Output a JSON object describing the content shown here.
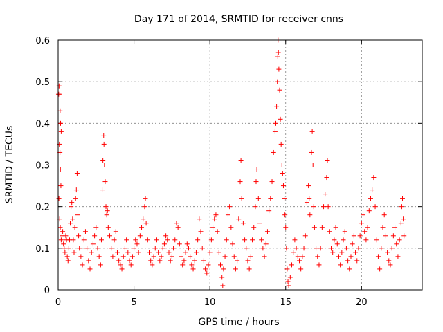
{
  "chart_data": {
    "type": "scatter",
    "title": "Day 171 of 2014, SRMTID for receiver cnns",
    "xlabel": "GPS time / hours",
    "ylabel": "SRMTID / TECUs",
    "xlim": [
      0,
      24
    ],
    "ylim": [
      0,
      0.6
    ],
    "xticks": [
      0,
      5,
      10,
      15,
      20
    ],
    "yticks": [
      0,
      0.1,
      0.2,
      0.3,
      0.4,
      0.5,
      0.6
    ],
    "ytick_labels": [
      "0",
      "0.1",
      "0.2",
      "0.3",
      "0.4",
      "0.5",
      "0.6"
    ],
    "grid": true,
    "marker": "+",
    "color": "#ff0000",
    "series": [
      {
        "name": "cnns",
        "points": [
          [
            0.02,
            0.47
          ],
          [
            0.06,
            0.49
          ],
          [
            0.1,
            0.47
          ],
          [
            0.13,
            0.43
          ],
          [
            0.16,
            0.4
          ],
          [
            0.2,
            0.38
          ],
          [
            0.08,
            0.35
          ],
          [
            0.12,
            0.33
          ],
          [
            0.15,
            0.29
          ],
          [
            0.18,
            0.25
          ],
          [
            0.05,
            0.22
          ],
          [
            0.1,
            0.17
          ],
          [
            0.14,
            0.15
          ],
          [
            0.2,
            0.12
          ],
          [
            0.25,
            0.13
          ],
          [
            0.3,
            0.14
          ],
          [
            0.35,
            0.11
          ],
          [
            0.4,
            0.1
          ],
          [
            0.45,
            0.09
          ],
          [
            0.5,
            0.13
          ],
          [
            0.55,
            0.12
          ],
          [
            0.6,
            0.08
          ],
          [
            0.65,
            0.07
          ],
          [
            0.7,
            0.1
          ],
          [
            0.75,
            0.12
          ],
          [
            0.8,
            0.16
          ],
          [
            0.85,
            0.2
          ],
          [
            0.9,
            0.21
          ],
          [
            0.95,
            0.17
          ],
          [
            1.0,
            0.12
          ],
          [
            1.05,
            0.09
          ],
          [
            1.1,
            0.15
          ],
          [
            1.15,
            0.22
          ],
          [
            1.2,
            0.24
          ],
          [
            1.25,
            0.28
          ],
          [
            1.3,
            0.18
          ],
          [
            1.35,
            0.13
          ],
          [
            1.4,
            0.1
          ],
          [
            1.5,
            0.08
          ],
          [
            1.6,
            0.06
          ],
          [
            1.7,
            0.12
          ],
          [
            1.8,
            0.14
          ],
          [
            1.9,
            0.1
          ],
          [
            2.0,
            0.07
          ],
          [
            2.1,
            0.05
          ],
          [
            2.2,
            0.09
          ],
          [
            2.3,
            0.11
          ],
          [
            2.4,
            0.13
          ],
          [
            2.5,
            0.15
          ],
          [
            2.6,
            0.1
          ],
          [
            2.7,
            0.08
          ],
          [
            2.8,
            0.06
          ],
          [
            2.85,
            0.12
          ],
          [
            2.9,
            0.24
          ],
          [
            2.95,
            0.31
          ],
          [
            3.0,
            0.37
          ],
          [
            3.02,
            0.35
          ],
          [
            3.05,
            0.3
          ],
          [
            3.1,
            0.26
          ],
          [
            3.15,
            0.2
          ],
          [
            3.2,
            0.18
          ],
          [
            3.25,
            0.19
          ],
          [
            3.3,
            0.15
          ],
          [
            3.4,
            0.13
          ],
          [
            3.5,
            0.1
          ],
          [
            3.6,
            0.08
          ],
          [
            3.7,
            0.12
          ],
          [
            3.8,
            0.14
          ],
          [
            3.9,
            0.09
          ],
          [
            4.0,
            0.07
          ],
          [
            4.1,
            0.06
          ],
          [
            4.2,
            0.05
          ],
          [
            4.3,
            0.08
          ],
          [
            4.4,
            0.1
          ],
          [
            4.5,
            0.12
          ],
          [
            4.6,
            0.09
          ],
          [
            4.7,
            0.07
          ],
          [
            4.8,
            0.06
          ],
          [
            4.9,
            0.08
          ],
          [
            5.0,
            0.1
          ],
          [
            5.1,
            0.12
          ],
          [
            5.2,
            0.11
          ],
          [
            5.3,
            0.09
          ],
          [
            5.4,
            0.13
          ],
          [
            5.5,
            0.15
          ],
          [
            5.6,
            0.17
          ],
          [
            5.7,
            0.2
          ],
          [
            5.75,
            0.22
          ],
          [
            5.8,
            0.16
          ],
          [
            5.9,
            0.12
          ],
          [
            6.0,
            0.09
          ],
          [
            6.1,
            0.07
          ],
          [
            6.2,
            0.06
          ],
          [
            6.3,
            0.08
          ],
          [
            6.4,
            0.1
          ],
          [
            6.5,
            0.12
          ],
          [
            6.6,
            0.09
          ],
          [
            6.7,
            0.07
          ],
          [
            6.8,
            0.08
          ],
          [
            6.9,
            0.1
          ],
          [
            7.0,
            0.11
          ],
          [
            7.1,
            0.13
          ],
          [
            7.2,
            0.12
          ],
          [
            7.3,
            0.09
          ],
          [
            7.4,
            0.07
          ],
          [
            7.5,
            0.08
          ],
          [
            7.6,
            0.1
          ],
          [
            7.7,
            0.12
          ],
          [
            7.8,
            0.16
          ],
          [
            7.9,
            0.15
          ],
          [
            8.0,
            0.11
          ],
          [
            8.1,
            0.08
          ],
          [
            8.2,
            0.06
          ],
          [
            8.3,
            0.07
          ],
          [
            8.4,
            0.09
          ],
          [
            8.5,
            0.11
          ],
          [
            8.6,
            0.1
          ],
          [
            8.7,
            0.08
          ],
          [
            8.8,
            0.06
          ],
          [
            8.9,
            0.05
          ],
          [
            9.0,
            0.07
          ],
          [
            9.1,
            0.09
          ],
          [
            9.2,
            0.12
          ],
          [
            9.3,
            0.17
          ],
          [
            9.4,
            0.14
          ],
          [
            9.5,
            0.1
          ],
          [
            9.6,
            0.07
          ],
          [
            9.7,
            0.05
          ],
          [
            9.8,
            0.04
          ],
          [
            9.9,
            0.06
          ],
          [
            10.0,
            0.09
          ],
          [
            10.1,
            0.12
          ],
          [
            10.2,
            0.15
          ],
          [
            10.3,
            0.17
          ],
          [
            10.4,
            0.18
          ],
          [
            10.5,
            0.14
          ],
          [
            10.6,
            0.09
          ],
          [
            10.7,
            0.06
          ],
          [
            10.8,
            0.03
          ],
          [
            10.85,
            0.01
          ],
          [
            10.9,
            0.05
          ],
          [
            11.0,
            0.08
          ],
          [
            11.1,
            0.12
          ],
          [
            11.2,
            0.18
          ],
          [
            11.3,
            0.2
          ],
          [
            11.4,
            0.15
          ],
          [
            11.5,
            0.11
          ],
          [
            11.6,
            0.08
          ],
          [
            11.7,
            0.05
          ],
          [
            11.8,
            0.07
          ],
          [
            11.9,
            0.17
          ],
          [
            12.0,
            0.26
          ],
          [
            12.05,
            0.31
          ],
          [
            12.1,
            0.22
          ],
          [
            12.2,
            0.16
          ],
          [
            12.3,
            0.12
          ],
          [
            12.4,
            0.1
          ],
          [
            12.5,
            0.07
          ],
          [
            12.6,
            0.05
          ],
          [
            12.7,
            0.08
          ],
          [
            12.8,
            0.12
          ],
          [
            12.9,
            0.15
          ],
          [
            13.0,
            0.2
          ],
          [
            13.05,
            0.26
          ],
          [
            13.1,
            0.29
          ],
          [
            13.2,
            0.22
          ],
          [
            13.3,
            0.16
          ],
          [
            13.4,
            0.12
          ],
          [
            13.5,
            0.1
          ],
          [
            13.6,
            0.08
          ],
          [
            13.7,
            0.11
          ],
          [
            13.8,
            0.14
          ],
          [
            13.9,
            0.19
          ],
          [
            14.0,
            0.22
          ],
          [
            14.1,
            0.26
          ],
          [
            14.2,
            0.33
          ],
          [
            14.3,
            0.38
          ],
          [
            14.35,
            0.4
          ],
          [
            14.4,
            0.44
          ],
          [
            14.45,
            0.5
          ],
          [
            14.48,
            0.56
          ],
          [
            14.5,
            0.6
          ],
          [
            14.52,
            0.57
          ],
          [
            14.55,
            0.53
          ],
          [
            14.6,
            0.48
          ],
          [
            14.65,
            0.41
          ],
          [
            14.7,
            0.35
          ],
          [
            14.75,
            0.3
          ],
          [
            14.8,
            0.28
          ],
          [
            14.85,
            0.25
          ],
          [
            14.9,
            0.22
          ],
          [
            14.95,
            0.18
          ],
          [
            15.0,
            0.15
          ],
          [
            15.05,
            0.1
          ],
          [
            15.1,
            0.05
          ],
          [
            15.15,
            0.02
          ],
          [
            15.2,
            0.01
          ],
          [
            15.3,
            0.03
          ],
          [
            15.4,
            0.06
          ],
          [
            15.5,
            0.09
          ],
          [
            15.6,
            0.12
          ],
          [
            15.7,
            0.1
          ],
          [
            15.8,
            0.08
          ],
          [
            15.9,
            0.07
          ],
          [
            16.0,
            0.05
          ],
          [
            16.1,
            0.08
          ],
          [
            16.2,
            0.1
          ],
          [
            16.3,
            0.13
          ],
          [
            16.4,
            0.21
          ],
          [
            16.5,
            0.25
          ],
          [
            16.55,
            0.22
          ],
          [
            16.6,
            0.18
          ],
          [
            16.7,
            0.33
          ],
          [
            16.75,
            0.38
          ],
          [
            16.8,
            0.3
          ],
          [
            16.85,
            0.2
          ],
          [
            16.9,
            0.15
          ],
          [
            17.0,
            0.1
          ],
          [
            17.1,
            0.08
          ],
          [
            17.2,
            0.06
          ],
          [
            17.3,
            0.1
          ],
          [
            17.4,
            0.15
          ],
          [
            17.5,
            0.2
          ],
          [
            17.6,
            0.23
          ],
          [
            17.7,
            0.27
          ],
          [
            17.75,
            0.31
          ],
          [
            17.8,
            0.2
          ],
          [
            17.9,
            0.14
          ],
          [
            18.0,
            0.1
          ],
          [
            18.1,
            0.09
          ],
          [
            18.2,
            0.12
          ],
          [
            18.3,
            0.15
          ],
          [
            18.4,
            0.11
          ],
          [
            18.5,
            0.08
          ],
          [
            18.6,
            0.06
          ],
          [
            18.7,
            0.09
          ],
          [
            18.8,
            0.12
          ],
          [
            18.9,
            0.14
          ],
          [
            19.0,
            0.1
          ],
          [
            19.1,
            0.07
          ],
          [
            19.2,
            0.05
          ],
          [
            19.3,
            0.08
          ],
          [
            19.4,
            0.11
          ],
          [
            19.5,
            0.13
          ],
          [
            19.6,
            0.09
          ],
          [
            19.7,
            0.07
          ],
          [
            19.8,
            0.1
          ],
          [
            19.9,
            0.13
          ],
          [
            20.0,
            0.16
          ],
          [
            20.1,
            0.18
          ],
          [
            20.2,
            0.14
          ],
          [
            20.3,
            0.12
          ],
          [
            20.4,
            0.15
          ],
          [
            20.5,
            0.19
          ],
          [
            20.6,
            0.22
          ],
          [
            20.7,
            0.24
          ],
          [
            20.8,
            0.27
          ],
          [
            20.9,
            0.2
          ],
          [
            21.0,
            0.12
          ],
          [
            21.1,
            0.08
          ],
          [
            21.2,
            0.05
          ],
          [
            21.3,
            0.1
          ],
          [
            21.4,
            0.15
          ],
          [
            21.5,
            0.18
          ],
          [
            21.6,
            0.13
          ],
          [
            21.7,
            0.09
          ],
          [
            21.8,
            0.07
          ],
          [
            21.9,
            0.06
          ],
          [
            22.0,
            0.1
          ],
          [
            22.1,
            0.13
          ],
          [
            22.2,
            0.15
          ],
          [
            22.3,
            0.11
          ],
          [
            22.4,
            0.08
          ],
          [
            22.5,
            0.12
          ],
          [
            22.6,
            0.16
          ],
          [
            22.65,
            0.2
          ],
          [
            22.7,
            0.22
          ],
          [
            22.75,
            0.17
          ],
          [
            22.8,
            0.13
          ]
        ]
      }
    ]
  }
}
